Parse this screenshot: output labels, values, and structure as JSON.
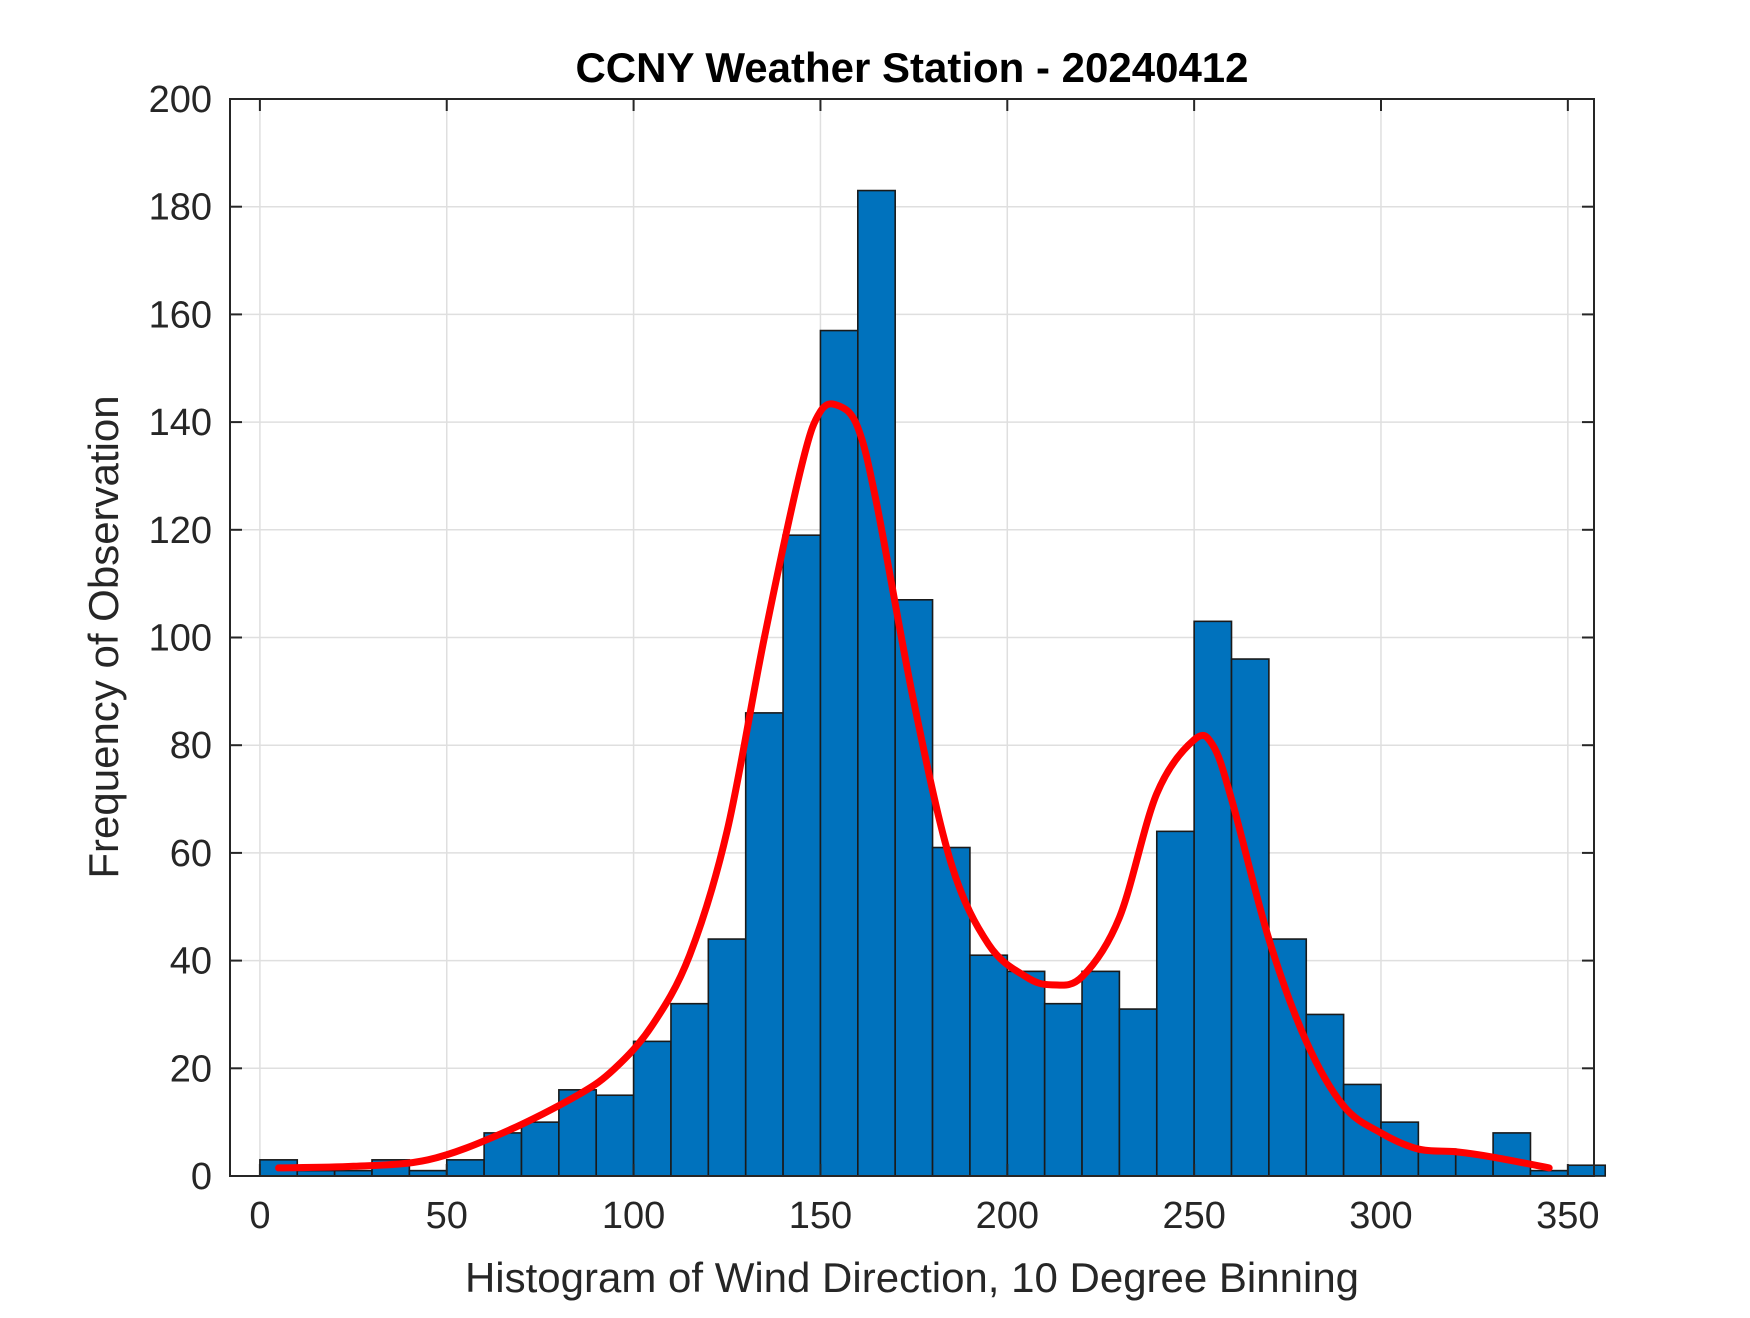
{
  "chart_data": {
    "type": "bar",
    "title": "CCNY Weather Station - 20240412",
    "xlabel": "Histogram of Wind Direction, 10 Degree Binning",
    "ylabel": "Frequency of Observation",
    "xlim": [
      -8,
      357
    ],
    "ylim": [
      0,
      200
    ],
    "grid": true,
    "x_ticks": [
      0,
      50,
      100,
      150,
      200,
      250,
      300,
      350
    ],
    "y_ticks": [
      0,
      20,
      40,
      60,
      80,
      100,
      120,
      140,
      160,
      180,
      200
    ],
    "bin_width": 10,
    "bins": [
      {
        "start": 0,
        "count": 3
      },
      {
        "start": 10,
        "count": 1
      },
      {
        "start": 20,
        "count": 1
      },
      {
        "start": 30,
        "count": 3
      },
      {
        "start": 40,
        "count": 1
      },
      {
        "start": 50,
        "count": 3
      },
      {
        "start": 60,
        "count": 8
      },
      {
        "start": 70,
        "count": 10
      },
      {
        "start": 80,
        "count": 16
      },
      {
        "start": 90,
        "count": 15
      },
      {
        "start": 100,
        "count": 25
      },
      {
        "start": 110,
        "count": 32
      },
      {
        "start": 120,
        "count": 44
      },
      {
        "start": 130,
        "count": 86
      },
      {
        "start": 140,
        "count": 119
      },
      {
        "start": 150,
        "count": 157
      },
      {
        "start": 160,
        "count": 183
      },
      {
        "start": 170,
        "count": 107
      },
      {
        "start": 180,
        "count": 61
      },
      {
        "start": 190,
        "count": 41
      },
      {
        "start": 200,
        "count": 38
      },
      {
        "start": 210,
        "count": 32
      },
      {
        "start": 220,
        "count": 38
      },
      {
        "start": 230,
        "count": 31
      },
      {
        "start": 240,
        "count": 64
      },
      {
        "start": 250,
        "count": 103
      },
      {
        "start": 260,
        "count": 96
      },
      {
        "start": 270,
        "count": 44
      },
      {
        "start": 280,
        "count": 30
      },
      {
        "start": 290,
        "count": 17
      },
      {
        "start": 300,
        "count": 10
      },
      {
        "start": 310,
        "count": 5
      },
      {
        "start": 320,
        "count": 4
      },
      {
        "start": 330,
        "count": 8
      },
      {
        "start": 340,
        "count": 1
      },
      {
        "start": 350,
        "count": 2
      }
    ],
    "fit_curve": {
      "name": "fit",
      "x": [
        5,
        25,
        45,
        65,
        85,
        95,
        105,
        115,
        125,
        135,
        145,
        150,
        155,
        160,
        165,
        175,
        185,
        195,
        205,
        212,
        220,
        230,
        240,
        250,
        255,
        260,
        270,
        280,
        290,
        300,
        310,
        320,
        330,
        345
      ],
      "y": [
        1.5,
        1.8,
        3,
        8,
        15,
        20,
        28,
        41,
        64,
        100,
        132,
        142,
        143,
        139,
        125,
        88,
        58,
        43,
        37,
        35.5,
        37,
        48,
        71,
        81,
        80,
        70,
        44,
        25,
        13,
        8,
        5,
        4.5,
        3.5,
        1.5
      ]
    },
    "colors": {
      "bar_fill": "#0072BD",
      "bar_edge": "#1a1a1a",
      "fit_line": "#FF0000",
      "grid": "#dfdfdf",
      "axis": "#262626"
    }
  }
}
